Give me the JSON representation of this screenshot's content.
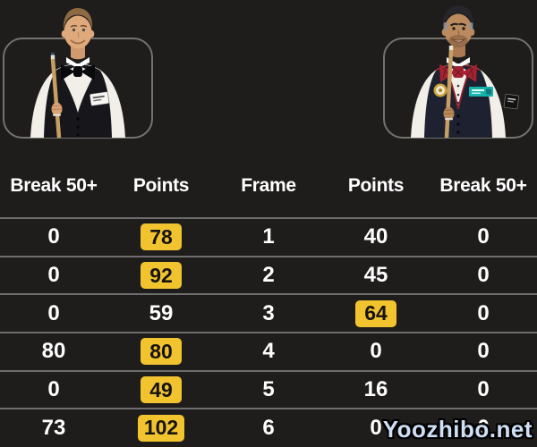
{
  "players": {
    "left_photo_icon": "snooker-player-black-bowtie-holding-cue",
    "right_photo_icon": "snooker-player-red-bowtie-holding-cue"
  },
  "table": {
    "headers": [
      "Break 50+",
      "Points",
      "Frame",
      "Points",
      "Break 50+"
    ],
    "rows": [
      [
        {
          "value": "0"
        },
        {
          "value": "78",
          "highlight": true
        },
        {
          "value": "1"
        },
        {
          "value": "40"
        },
        {
          "value": "0"
        }
      ],
      [
        {
          "value": "0"
        },
        {
          "value": "92",
          "highlight": true
        },
        {
          "value": "2"
        },
        {
          "value": "45"
        },
        {
          "value": "0"
        }
      ],
      [
        {
          "value": "0"
        },
        {
          "value": "59"
        },
        {
          "value": "3"
        },
        {
          "value": "64",
          "highlight": true
        },
        {
          "value": "0"
        }
      ],
      [
        {
          "value": "80"
        },
        {
          "value": "80",
          "highlight": true
        },
        {
          "value": "4"
        },
        {
          "value": "0"
        },
        {
          "value": "0"
        }
      ],
      [
        {
          "value": "0"
        },
        {
          "value": "49",
          "highlight": true
        },
        {
          "value": "5"
        },
        {
          "value": "16"
        },
        {
          "value": "0"
        }
      ],
      [
        {
          "value": "73"
        },
        {
          "value": "102",
          "highlight": true
        },
        {
          "value": "6"
        },
        {
          "value": "0"
        },
        {
          "value": "0"
        }
      ]
    ]
  },
  "watermark": {
    "text": "Yoozhibo.net"
  },
  "colors": {
    "background": "#1f1d1c",
    "highlight_badge": "#f1c42f",
    "divider": "#6e6e6e",
    "text": "#ffffff",
    "frame_border": "#73726d",
    "watermark_fill": "#cfe0f6"
  }
}
